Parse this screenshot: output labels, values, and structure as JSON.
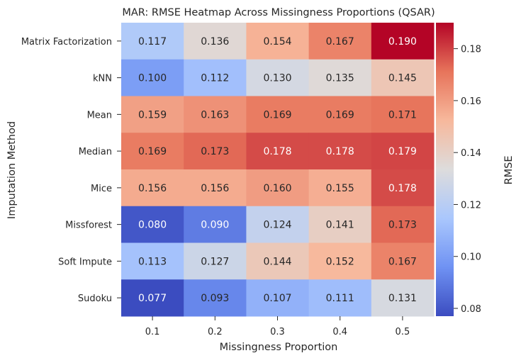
{
  "chart_data": {
    "type": "heatmap",
    "title": "MAR: RMSE Heatmap Across Missingness Proportions (QSAR)",
    "xlabel": "Missingness Proportion",
    "ylabel": "Imputation Method",
    "x_categories": [
      "0.1",
      "0.2",
      "0.3",
      "0.4",
      "0.5"
    ],
    "y_categories": [
      "Matrix Factorization",
      "kNN",
      "Mean",
      "Median",
      "Mice",
      "Missforest",
      "Soft Impute",
      "Sudoku"
    ],
    "values": [
      [
        0.117,
        0.136,
        0.154,
        0.167,
        0.19
      ],
      [
        0.1,
        0.112,
        0.13,
        0.135,
        0.145
      ],
      [
        0.159,
        0.163,
        0.169,
        0.169,
        0.171
      ],
      [
        0.169,
        0.173,
        0.178,
        0.178,
        0.179
      ],
      [
        0.156,
        0.156,
        0.16,
        0.155,
        0.178
      ],
      [
        0.08,
        0.09,
        0.124,
        0.141,
        0.173
      ],
      [
        0.113,
        0.127,
        0.144,
        0.152,
        0.167
      ],
      [
        0.077,
        0.093,
        0.107,
        0.111,
        0.131
      ]
    ],
    "cell_labels": [
      [
        "0.117",
        "0.136",
        "0.154",
        "0.167",
        "0.190"
      ],
      [
        "0.100",
        "0.112",
        "0.130",
        "0.135",
        "0.145"
      ],
      [
        "0.159",
        "0.163",
        "0.169",
        "0.169",
        "0.171"
      ],
      [
        "0.169",
        "0.173",
        "0.178",
        "0.178",
        "0.179"
      ],
      [
        "0.156",
        "0.156",
        "0.160",
        "0.155",
        "0.178"
      ],
      [
        "0.080",
        "0.090",
        "0.124",
        "0.141",
        "0.173"
      ],
      [
        "0.113",
        "0.127",
        "0.144",
        "0.152",
        "0.167"
      ],
      [
        "0.077",
        "0.093",
        "0.107",
        "0.111",
        "0.131"
      ]
    ],
    "colorbar": {
      "label": "RMSE",
      "vmin": 0.077,
      "vmax": 0.19,
      "ticks": [
        0.08,
        0.1,
        0.12,
        0.14,
        0.16,
        0.18
      ],
      "tick_labels": [
        "0.08",
        "0.10",
        "0.12",
        "0.14",
        "0.16",
        "0.18"
      ]
    },
    "colormap": "coolwarm",
    "colormap_stops": [
      "#3b4cc0",
      "#6f92f3",
      "#aac7fd",
      "#dddcdc",
      "#f7b89c",
      "#e7745b",
      "#b40426"
    ]
  }
}
